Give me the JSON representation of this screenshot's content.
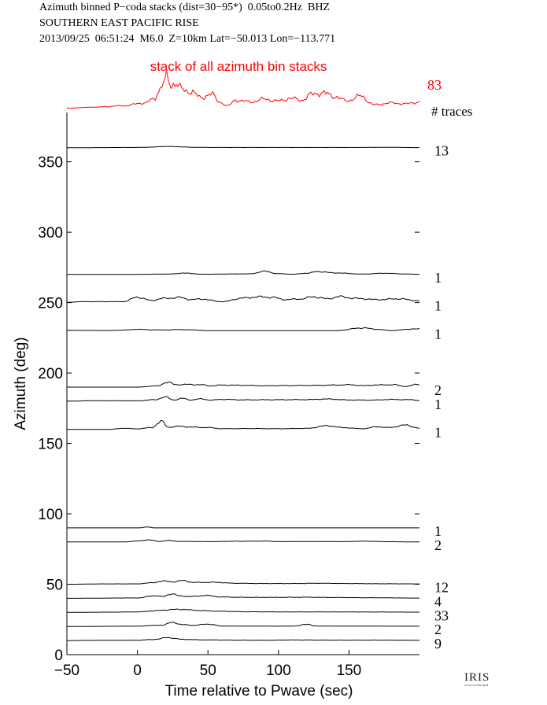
{
  "header": {
    "line1": "Azimuth binned P−coda stacks (dist=30−95*)  0.05to0.2Hz  BHZ",
    "line2": "SOUTHERN EAST PACIFIC RISE",
    "line3": "2013/09/25  06:51:24  M6.0  Z=10km Lat=−50.013 Lon=−113.771"
  },
  "logo": {
    "text": "IRIS",
    "url": "www.iris.edu/spud"
  },
  "chart_data": {
    "type": "line",
    "xlabel": "Time relative to Pwave (sec)",
    "ylabel": "Azimuth (deg)",
    "xlim": [
      -50,
      200
    ],
    "ylim": [
      0,
      385
    ],
    "xticks": [
      -50,
      0,
      50,
      100,
      150
    ],
    "yticks": [
      0,
      50,
      100,
      150,
      200,
      250,
      300,
      350
    ],
    "grid": false,
    "traces_header": "# traces",
    "stack": {
      "label": "stack of all azimuth bin stacks",
      "count": "83",
      "color": "#ff0000",
      "peaks": [
        [
          -50,
          0.05
        ],
        [
          -30,
          0.15
        ],
        [
          -10,
          0.3
        ],
        [
          5,
          0.6
        ],
        [
          12,
          1.0
        ],
        [
          15,
          1.9
        ],
        [
          18,
          2.6
        ],
        [
          21,
          3.2
        ],
        [
          24,
          2.4
        ],
        [
          27,
          2.9
        ],
        [
          30,
          2.2
        ],
        [
          34,
          1.8
        ],
        [
          38,
          1.9
        ],
        [
          45,
          1.1
        ],
        [
          52,
          1.6
        ],
        [
          58,
          0.7
        ],
        [
          64,
          0.3
        ],
        [
          70,
          0.9
        ],
        [
          80,
          0.7
        ],
        [
          90,
          1.0
        ],
        [
          100,
          0.8
        ],
        [
          108,
          1.1
        ],
        [
          116,
          0.9
        ],
        [
          124,
          1.5
        ],
        [
          130,
          1.7
        ],
        [
          140,
          1.3
        ],
        [
          148,
          0.8
        ],
        [
          158,
          1.3
        ],
        [
          168,
          0.4
        ],
        [
          180,
          0.6
        ],
        [
          190,
          0.5
        ],
        [
          200,
          0.7
        ]
      ]
    },
    "series": [
      {
        "azimuth": 360,
        "count": "13",
        "peaks": [
          [
            -50,
            0
          ],
          [
            0,
            0.2
          ],
          [
            10,
            0.5
          ],
          [
            20,
            1.1
          ],
          [
            30,
            0.8
          ],
          [
            40,
            0.3
          ],
          [
            60,
            0.2
          ],
          [
            100,
            0.2
          ],
          [
            150,
            0.2
          ],
          [
            180,
            0.3
          ],
          [
            200,
            0.1
          ]
        ]
      },
      {
        "azimuth": 270,
        "count": "1",
        "peaks": [
          [
            -50,
            0
          ],
          [
            -10,
            0
          ],
          [
            20,
            0.3
          ],
          [
            35,
            1.1
          ],
          [
            45,
            0.2
          ],
          [
            80,
            0.5
          ],
          [
            90,
            2.6
          ],
          [
            100,
            0.6
          ],
          [
            110,
            0.2
          ],
          [
            120,
            1.0
          ],
          [
            128,
            2.4
          ],
          [
            140,
            1.3
          ],
          [
            160,
            0.3
          ],
          [
            175,
            1.0
          ],
          [
            190,
            0.4
          ],
          [
            200,
            0.1
          ]
        ]
      },
      {
        "azimuth": 250,
        "count": "1",
        "peaks": [
          [
            -50,
            0.2
          ],
          [
            -40,
            0.8
          ],
          [
            -25,
            0.8
          ],
          [
            -10,
            0.8
          ],
          [
            0,
            4.5
          ],
          [
            10,
            1.8
          ],
          [
            18,
            3.5
          ],
          [
            30,
            4.3
          ],
          [
            38,
            2.5
          ],
          [
            45,
            3.0
          ],
          [
            60,
            0.8
          ],
          [
            75,
            3.8
          ],
          [
            85,
            4.8
          ],
          [
            95,
            4.5
          ],
          [
            105,
            2.5
          ],
          [
            115,
            3.0
          ],
          [
            125,
            4.8
          ],
          [
            135,
            3.2
          ],
          [
            143,
            5.0
          ],
          [
            155,
            3.5
          ],
          [
            170,
            2.5
          ],
          [
            185,
            3.2
          ],
          [
            200,
            1.5
          ]
        ]
      },
      {
        "azimuth": 230,
        "count": "1",
        "peaks": [
          [
            -50,
            0.4
          ],
          [
            -40,
            0.3
          ],
          [
            -20,
            0.2
          ],
          [
            -10,
            0.6
          ],
          [
            0,
            1.2
          ],
          [
            10,
            0.8
          ],
          [
            20,
            0.7
          ],
          [
            30,
            1.0
          ],
          [
            40,
            0.7
          ],
          [
            50,
            0.1
          ],
          [
            100,
            0.1
          ],
          [
            140,
            0.1
          ],
          [
            160,
            2.4
          ],
          [
            170,
            1.2
          ],
          [
            180,
            0.2
          ],
          [
            195,
            1.5
          ],
          [
            200,
            1.5
          ]
        ]
      },
      {
        "azimuth": 190,
        "count": "2",
        "peaks": [
          [
            -50,
            0
          ],
          [
            0,
            0
          ],
          [
            14,
            1.0
          ],
          [
            21,
            4.0
          ],
          [
            28,
            2.0
          ],
          [
            35,
            2.2
          ],
          [
            45,
            2.0
          ],
          [
            52,
            1.0
          ],
          [
            60,
            1.7
          ],
          [
            75,
            1.5
          ],
          [
            90,
            1.1
          ],
          [
            105,
            1.3
          ],
          [
            125,
            1.4
          ],
          [
            140,
            1.7
          ],
          [
            150,
            2.0
          ],
          [
            160,
            1.2
          ],
          [
            170,
            1.8
          ],
          [
            182,
            2.0
          ],
          [
            190,
            0.5
          ],
          [
            198,
            2.2
          ]
        ]
      },
      {
        "azimuth": 180,
        "count": "1",
        "peaks": [
          [
            -50,
            0
          ],
          [
            -30,
            0.4
          ],
          [
            0,
            0.3
          ],
          [
            12,
            1.2
          ],
          [
            20,
            3.4
          ],
          [
            26,
            1.0
          ],
          [
            32,
            2.3
          ],
          [
            38,
            1.0
          ],
          [
            45,
            1.9
          ],
          [
            52,
            0.9
          ],
          [
            60,
            1.5
          ],
          [
            75,
            1.1
          ],
          [
            100,
            1.2
          ],
          [
            120,
            1.3
          ],
          [
            135,
            1.8
          ],
          [
            150,
            1.0
          ],
          [
            165,
            0.9
          ],
          [
            180,
            1.4
          ],
          [
            195,
            1.2
          ],
          [
            200,
            0.5
          ]
        ]
      },
      {
        "azimuth": 160,
        "count": "1",
        "peaks": [
          [
            -50,
            0
          ],
          [
            -20,
            0
          ],
          [
            -10,
            0.9
          ],
          [
            0,
            0.4
          ],
          [
            10,
            1.5
          ],
          [
            17,
            6.5
          ],
          [
            22,
            1.8
          ],
          [
            30,
            2.5
          ],
          [
            40,
            1.8
          ],
          [
            50,
            1.5
          ],
          [
            60,
            0.5
          ],
          [
            80,
            0.7
          ],
          [
            100,
            0.5
          ],
          [
            120,
            0.8
          ],
          [
            135,
            3.0
          ],
          [
            145,
            1.5
          ],
          [
            160,
            0.5
          ],
          [
            170,
            2.2
          ],
          [
            178,
            1.5
          ],
          [
            190,
            3.5
          ],
          [
            200,
            1.0
          ]
        ]
      },
      {
        "azimuth": 90,
        "count": "1",
        "peaks": [
          [
            -50,
            0
          ],
          [
            0,
            0
          ],
          [
            8,
            0.8
          ],
          [
            12,
            0
          ],
          [
            200,
            0
          ]
        ]
      },
      {
        "azimuth": 80,
        "count": "2",
        "peaks": [
          [
            -50,
            0
          ],
          [
            -10,
            0
          ],
          [
            0,
            0.8
          ],
          [
            8,
            1.8
          ],
          [
            15,
            0.5
          ],
          [
            22,
            1.2
          ],
          [
            30,
            0.5
          ],
          [
            50,
            0.3
          ],
          [
            70,
            0.6
          ],
          [
            90,
            0.8
          ],
          [
            100,
            0.3
          ],
          [
            120,
            0.4
          ],
          [
            145,
            0.3
          ],
          [
            160,
            0.7
          ],
          [
            180,
            0.2
          ],
          [
            200,
            0
          ]
        ]
      },
      {
        "azimuth": 50,
        "count": "12",
        "peaks": [
          [
            -50,
            0
          ],
          [
            -20,
            0.3
          ],
          [
            0,
            0.3
          ],
          [
            10,
            1.2
          ],
          [
            18,
            2.6
          ],
          [
            25,
            2.0
          ],
          [
            32,
            3.0
          ],
          [
            40,
            1.5
          ],
          [
            55,
            1.6
          ],
          [
            70,
            0.8
          ],
          [
            90,
            0.6
          ],
          [
            110,
            0.6
          ],
          [
            130,
            0.8
          ],
          [
            150,
            0.6
          ],
          [
            170,
            0.4
          ],
          [
            200,
            0.3
          ]
        ]
      },
      {
        "azimuth": 40,
        "count": "4",
        "peaks": [
          [
            -50,
            0
          ],
          [
            0,
            0.3
          ],
          [
            12,
            2.2
          ],
          [
            18,
            1.5
          ],
          [
            24,
            3.8
          ],
          [
            30,
            2.0
          ],
          [
            38,
            1.5
          ],
          [
            48,
            2.4
          ],
          [
            60,
            1.1
          ],
          [
            75,
            0.8
          ],
          [
            95,
            0.8
          ],
          [
            120,
            0.9
          ],
          [
            140,
            0.7
          ],
          [
            165,
            0.5
          ],
          [
            200,
            0.2
          ]
        ]
      },
      {
        "azimuth": 30,
        "count": "33",
        "peaks": [
          [
            -50,
            0
          ],
          [
            -20,
            0.2
          ],
          [
            0,
            0.4
          ],
          [
            10,
            1.2
          ],
          [
            20,
            2.0
          ],
          [
            30,
            2.6
          ],
          [
            38,
            2.0
          ],
          [
            48,
            1.4
          ],
          [
            60,
            0.9
          ],
          [
            80,
            0.5
          ],
          [
            110,
            0.4
          ],
          [
            140,
            0.4
          ],
          [
            170,
            0.3
          ],
          [
            200,
            0.2
          ]
        ]
      },
      {
        "azimuth": 20,
        "count": "2",
        "peaks": [
          [
            -50,
            0
          ],
          [
            0,
            0.2
          ],
          [
            10,
            0.8
          ],
          [
            18,
            1.2
          ],
          [
            25,
            3.5
          ],
          [
            32,
            1.5
          ],
          [
            40,
            1.0
          ],
          [
            50,
            2.0
          ],
          [
            60,
            0.4
          ],
          [
            80,
            0.3
          ],
          [
            100,
            0.2
          ],
          [
            112,
            0.4
          ],
          [
            120,
            2.0
          ],
          [
            126,
            0.4
          ],
          [
            150,
            0.3
          ],
          [
            200,
            0.2
          ]
        ]
      },
      {
        "azimuth": 10,
        "count": "9",
        "peaks": [
          [
            -50,
            0
          ],
          [
            -30,
            0.2
          ],
          [
            0,
            0.3
          ],
          [
            10,
            0.8
          ],
          [
            22,
            2.4
          ],
          [
            32,
            1.0
          ],
          [
            45,
            0.6
          ],
          [
            70,
            0.4
          ],
          [
            90,
            0.3
          ],
          [
            110,
            0.5
          ],
          [
            140,
            0.4
          ],
          [
            170,
            0.4
          ],
          [
            200,
            0.3
          ]
        ]
      }
    ]
  }
}
